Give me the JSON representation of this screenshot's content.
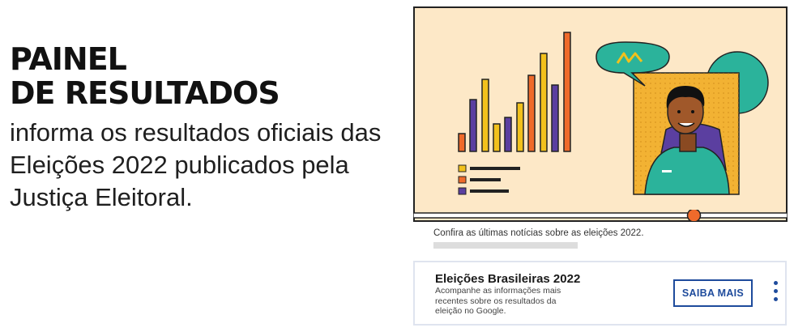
{
  "hero": {
    "title_line1": "PAINEL",
    "title_line2": "DE RESULTADOS",
    "description": "informa os resultados oficiais das Eleições 2022 publicados pela Justiça Eleitoral."
  },
  "video": {
    "speech_icon": "speech-bubble-icon",
    "progress_fraction": 0.75,
    "caption": "Confira as últimas notícias sobre as eleições 2022."
  },
  "card": {
    "title": "Eleições Brasileiras 2022",
    "text": "Acompanhe as informações mais recentes sobre os resultados da eleição no Google.",
    "button_label": "SAIBA MAIS",
    "menu_icon": "more-vertical-icon"
  },
  "colors": {
    "accent_blue": "#1e4b9c",
    "orange": "#ef6a2b",
    "yellow": "#f2c11c",
    "purple": "#5b3fa0",
    "teal": "#2bb39b",
    "cream": "#fde8c7"
  }
}
